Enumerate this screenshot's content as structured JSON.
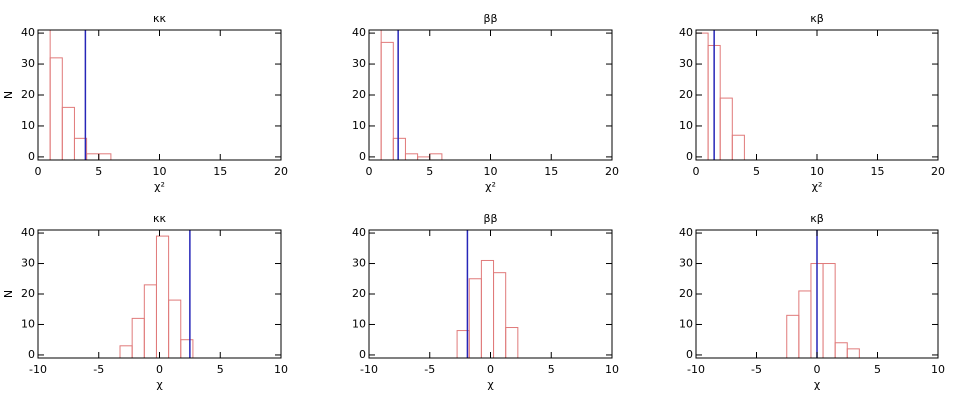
{
  "chart_data": [
    {
      "type": "histogram",
      "title": "κκ",
      "xlabel": "χ²",
      "ylabel": "N",
      "bins": [
        0,
        1,
        2,
        3,
        4,
        5,
        6
      ],
      "counts": [
        41,
        32,
        16,
        6,
        1,
        1
      ],
      "color": "#e07a7a",
      "vline": 3.9,
      "vline_color": "#2626b8",
      "xlim": [
        0,
        20
      ],
      "xticks": [
        0,
        5,
        10,
        15,
        20
      ],
      "ylim": [
        -1,
        41
      ],
      "yticks": [
        0,
        10,
        20,
        30,
        40
      ]
    },
    {
      "type": "histogram",
      "title": "ββ",
      "xlabel": "χ²",
      "bins": [
        0,
        1,
        2,
        3,
        4,
        5,
        6
      ],
      "counts": [
        41,
        37,
        6,
        1,
        0,
        1
      ],
      "color": "#e07a7a",
      "vline": 2.4,
      "vline_color": "#2626b8",
      "xlim": [
        0,
        20
      ],
      "xticks": [
        0,
        5,
        10,
        15,
        20
      ],
      "ylim": [
        -1,
        41
      ],
      "yticks": [
        0,
        10,
        20,
        30,
        40
      ]
    },
    {
      "type": "histogram",
      "title": "κβ",
      "xlabel": "χ²",
      "bins": [
        0,
        1,
        2,
        3,
        4
      ],
      "counts": [
        40,
        36,
        19,
        7
      ],
      "color": "#e07a7a",
      "vline": 1.5,
      "vline_color": "#2626b8",
      "xlim": [
        0,
        20
      ],
      "xticks": [
        0,
        5,
        10,
        15,
        20
      ],
      "ylim": [
        -1,
        41
      ],
      "yticks": [
        0,
        10,
        20,
        30,
        40
      ]
    },
    {
      "type": "histogram",
      "title": "κκ",
      "xlabel": "χ",
      "ylabel": "N",
      "bins": [
        -3.25,
        -2.25,
        -1.25,
        -0.25,
        0.75,
        1.75,
        2.75
      ],
      "counts": [
        3,
        12,
        23,
        39,
        18,
        5
      ],
      "color": "#e07a7a",
      "vline": 2.5,
      "vline_color": "#2626b8",
      "xlim": [
        -10,
        10
      ],
      "xticks": [
        -10,
        -5,
        0,
        5,
        10
      ],
      "ylim": [
        -1,
        41
      ],
      "yticks": [
        0,
        10,
        20,
        30,
        40
      ]
    },
    {
      "type": "histogram",
      "title": "ββ",
      "xlabel": "χ",
      "bins": [
        -2.75,
        -1.75,
        -0.75,
        0.25,
        1.25,
        2.25
      ],
      "counts": [
        8,
        25,
        31,
        27,
        9
      ],
      "color": "#e07a7a",
      "vline": -1.9,
      "vline_color": "#2626b8",
      "xlim": [
        -10,
        10
      ],
      "xticks": [
        -10,
        -5,
        0,
        5,
        10
      ],
      "ylim": [
        -1,
        41
      ],
      "yticks": [
        0,
        10,
        20,
        30,
        40
      ]
    },
    {
      "type": "histogram",
      "title": "κβ",
      "xlabel": "χ",
      "bins": [
        -2.5,
        -1.5,
        -0.5,
        0.5,
        1.5,
        2.5,
        3.5
      ],
      "counts": [
        13,
        21,
        30,
        30,
        4,
        2
      ],
      "color": "#e07a7a",
      "vline": 0,
      "vline_color": "#2626b8",
      "xlim": [
        -10,
        10
      ],
      "xticks": [
        -10,
        -5,
        0,
        5,
        10
      ],
      "ylim": [
        -1,
        41
      ],
      "yticks": [
        0,
        10,
        20,
        30,
        40
      ]
    }
  ]
}
